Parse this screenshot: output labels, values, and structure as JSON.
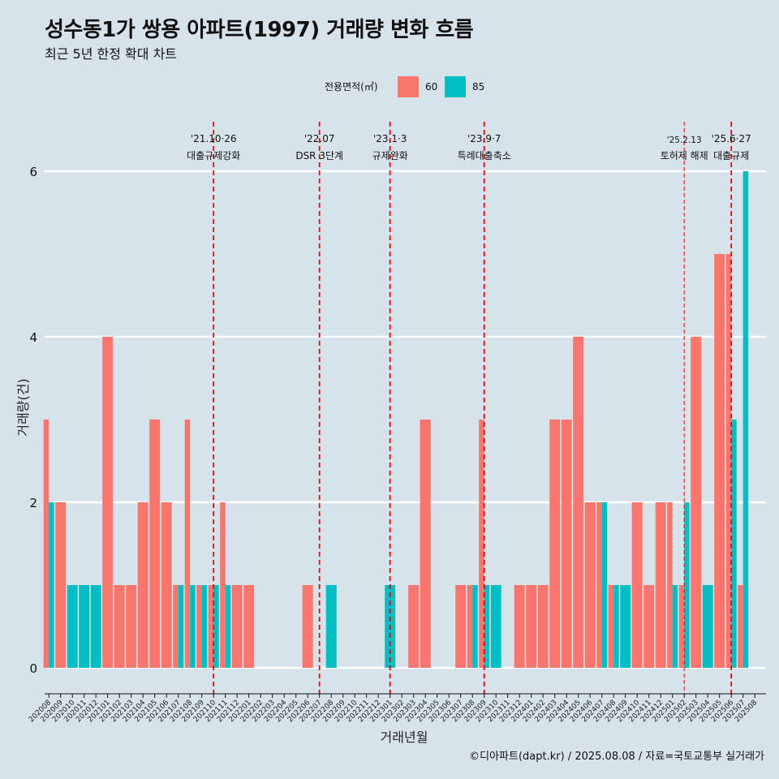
{
  "title": "성수동1가 쌍용 아파트(1997) 거래량 변화 흐름",
  "subtitle": "최근 5년 한정 확대 차트",
  "caption": "©디아파트(dapt.kr) / 2025.08.08 / 자료=국토교통부 실거래가",
  "colors": {
    "s60": "#f8766d",
    "s85": "#00bfc4",
    "vline": "#e8000b",
    "grid": "#ffffff",
    "bg": "#d6e3ea"
  },
  "chart_data": {
    "type": "bar",
    "title": "성수동1가 쌍용 아파트(1997) 거래량 변화 흐름",
    "xlabel": "거래년월",
    "ylabel": "거래량(건)",
    "ylim": [
      0,
      6
    ],
    "yticks": [
      0,
      2,
      4,
      6
    ],
    "legend_title": "전용면적(㎡)",
    "legend_position": "top",
    "categories": [
      "202008",
      "202009",
      "202010",
      "202011",
      "202012",
      "202101",
      "202102",
      "202103",
      "202104",
      "202105",
      "202106",
      "202107",
      "202108",
      "202109",
      "202110",
      "202111",
      "202112",
      "202201",
      "202202",
      "202203",
      "202204",
      "202205",
      "202206",
      "202207",
      "202208",
      "202209",
      "202210",
      "202211",
      "202212",
      "202301",
      "202302",
      "202303",
      "202304",
      "202305",
      "202306",
      "202307",
      "202308",
      "202309",
      "202310",
      "202311",
      "202312",
      "202401",
      "202402",
      "202403",
      "202404",
      "202405",
      "202406",
      "202407",
      "202408",
      "202409",
      "202410",
      "202411",
      "202412",
      "202501",
      "202502",
      "202503",
      "202504",
      "202505",
      "202506",
      "202507",
      "202508"
    ],
    "series": [
      {
        "name": "60",
        "values": [
          3,
          2,
          0,
          0,
          0,
          4,
          1,
          1,
          2,
          3,
          2,
          1,
          3,
          1,
          1,
          2,
          1,
          1,
          0,
          0,
          0,
          0,
          1,
          0,
          0,
          0,
          0,
          0,
          0,
          0,
          0,
          1,
          3,
          0,
          0,
          1,
          1,
          3,
          0,
          0,
          1,
          1,
          1,
          3,
          3,
          4,
          2,
          2,
          1,
          0,
          2,
          1,
          2,
          2,
          1,
          4,
          0,
          5,
          5,
          1,
          0
        ]
      },
      {
        "name": "85",
        "values": [
          2,
          0,
          1,
          1,
          1,
          0,
          0,
          0,
          0,
          0,
          0,
          1,
          1,
          1,
          1,
          1,
          0,
          0,
          0,
          0,
          0,
          0,
          0,
          0,
          1,
          0,
          0,
          0,
          0,
          1,
          0,
          0,
          0,
          0,
          0,
          0,
          1,
          1,
          1,
          0,
          0,
          0,
          0,
          0,
          0,
          0,
          0,
          2,
          1,
          1,
          0,
          0,
          0,
          1,
          2,
          0,
          1,
          0,
          3,
          6,
          0
        ]
      }
    ],
    "annotations": [
      {
        "after": "202110",
        "offset": 0.0,
        "date": "'21.10·26",
        "label": "대출규제강화",
        "style": "dashed"
      },
      {
        "after": "202207",
        "offset": 0.0,
        "date": "'22.07",
        "label": "DSR 3단계",
        "style": "dashed"
      },
      {
        "after": "202301",
        "offset": 0.0,
        "date": "'23.1·3",
        "label": "규제완화",
        "style": "dashed"
      },
      {
        "after": "202309",
        "offset": 0.0,
        "date": "'23.9·7",
        "label": "특례대출축소",
        "style": "dashed"
      },
      {
        "after": "202502",
        "offset": 0.0,
        "date": "'25.2.13",
        "label": "토허제 해제",
        "style": "thin"
      },
      {
        "after": "202506",
        "offset": 0.0,
        "date": "'25.6·27",
        "label": "대출규제",
        "style": "dashed"
      }
    ]
  }
}
